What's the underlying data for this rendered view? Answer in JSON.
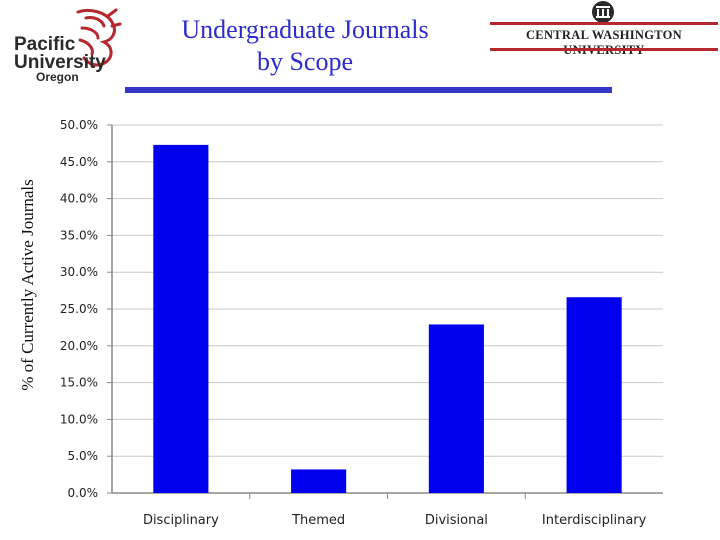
{
  "header": {
    "title_line1": "Undergraduate Journals",
    "title_line2": "by Scope",
    "left_logo": {
      "line1": "Pacific",
      "line2": "University",
      "line3": "Oregon",
      "icon": "boxer-dragon-icon",
      "color": "#b5282f"
    },
    "right_logo": {
      "text": "CENTRAL WASHINGTON UNIVERSITY",
      "icon": "building-seal-icon",
      "color": "#b5282f"
    }
  },
  "chart_data": {
    "type": "bar",
    "categories": [
      "Disciplinary",
      "Themed",
      "Divisional",
      "Interdisciplinary"
    ],
    "values": [
      47.3,
      3.2,
      22.9,
      26.6
    ],
    "ylabel": "% of Currently Active Journals",
    "xlabel": "",
    "ylim": [
      0,
      50
    ],
    "ytick_step": 5,
    "ytick_labels": [
      "0.0%",
      "5.0%",
      "10.0%",
      "15.0%",
      "20.0%",
      "25.0%",
      "30.0%",
      "35.0%",
      "40.0%",
      "45.0%",
      "50.0%"
    ],
    "bar_color": "#0000ee",
    "grid": true,
    "legend": "none"
  }
}
